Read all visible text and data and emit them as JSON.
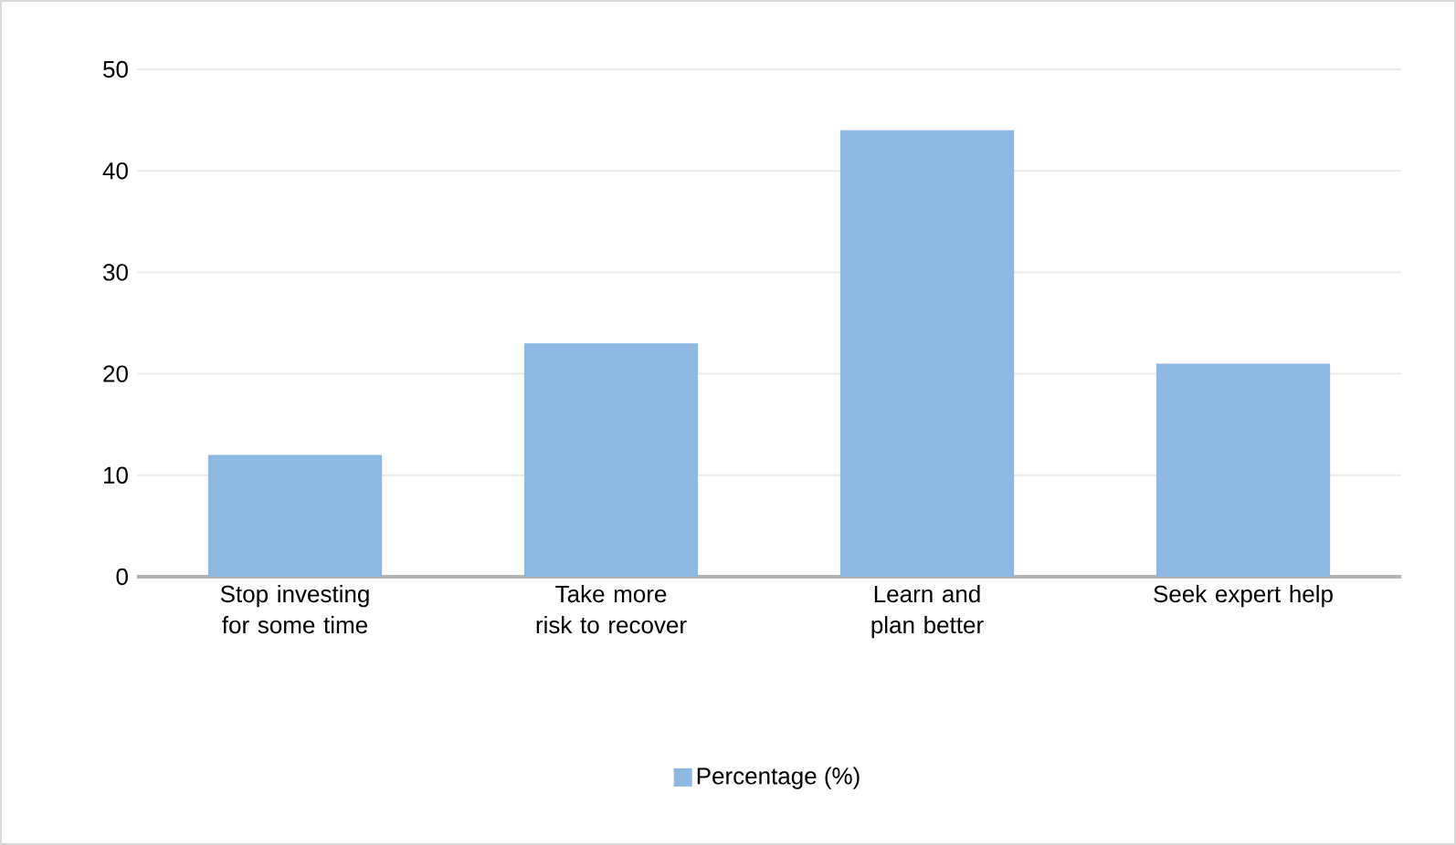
{
  "chart_data": {
    "type": "bar",
    "categories": [
      "Stop investing for some time",
      "Take more risk to recover",
      "Learn and plan better",
      "Seek expert help"
    ],
    "series": [
      {
        "name": "Percentage (%)",
        "color": "#8db8e2",
        "values": [
          12,
          23,
          44,
          21
        ]
      }
    ],
    "ylim": [
      0,
      50
    ],
    "yticks": [
      0,
      10,
      20,
      30,
      40,
      50
    ],
    "grid": "y",
    "legend": "bottom"
  }
}
